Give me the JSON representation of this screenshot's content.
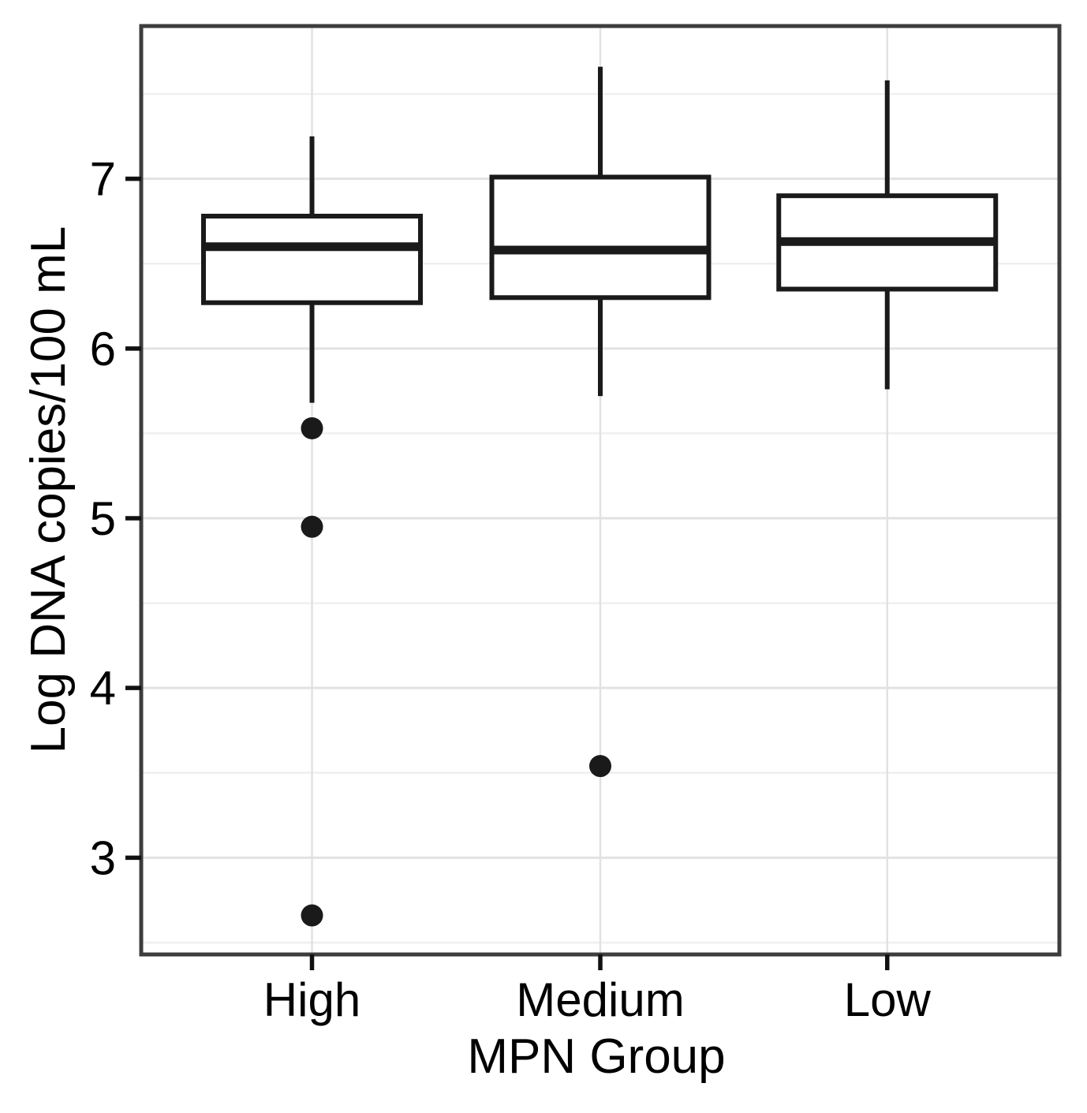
{
  "figure": {
    "kind": "statistical-boxplot-figure",
    "background": "#ffffff"
  },
  "chart_data": {
    "type": "box",
    "title": "",
    "xlabel": "MPN Group",
    "ylabel": "Log DNA copies/100 mL",
    "categories": [
      "High",
      "Medium",
      "Low"
    ],
    "series": [
      {
        "name": "High",
        "lower_whisker": 5.68,
        "q1": 6.27,
        "median": 6.6,
        "q3": 6.78,
        "upper_whisker": 7.25,
        "outliers": [
          5.53,
          4.95,
          2.66
        ]
      },
      {
        "name": "Medium",
        "lower_whisker": 5.72,
        "q1": 6.3,
        "median": 6.58,
        "q3": 7.01,
        "upper_whisker": 7.66,
        "outliers": [
          3.54
        ]
      },
      {
        "name": "Low",
        "lower_whisker": 5.76,
        "q1": 6.35,
        "median": 6.63,
        "q3": 6.9,
        "upper_whisker": 7.58,
        "outliers": []
      }
    ],
    "ylim": [
      2.43,
      7.9
    ],
    "yticks": [
      7,
      6,
      5,
      4,
      3
    ],
    "yticks_minor": [
      7.5,
      6.5,
      5.5,
      4.5,
      3.5,
      2.5
    ],
    "grid": "horizontal major+minor gridlines, vertical gridline at each category, panel border on",
    "legend": "none",
    "colors": {
      "box_stroke": "#1a1a1a",
      "box_fill": "#ffffff",
      "median": "#1a1a1a",
      "whisker": "#1a1a1a",
      "outlier": "#1a1a1a",
      "panel_border": "#3d3d3d",
      "axis_tick": "#111111",
      "grid_major": "#e2e2e2",
      "grid_minor": "#efefef",
      "text": "#000000",
      "background": "#ffffff"
    }
  }
}
